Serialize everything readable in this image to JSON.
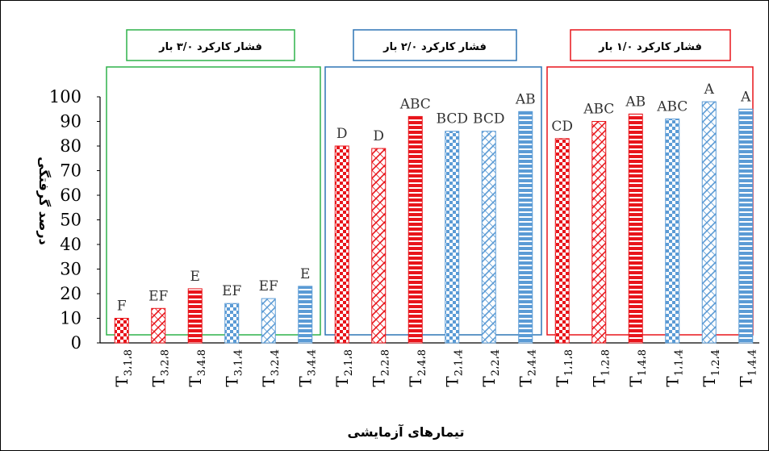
{
  "chart_data": {
    "type": "bar",
    "xlabel": "تیمارهای آزمایشی",
    "ylabel": "درصد گرفتگی",
    "ylim": [
      0,
      100
    ],
    "yticks": [
      "0",
      "10",
      "20",
      "30",
      "40",
      "50",
      "60",
      "70",
      "80",
      "90",
      "100"
    ],
    "grid": false,
    "colors": {
      "red": "#e8151b",
      "blue": "#5b9bd5",
      "green_box": "#2fb24a",
      "blue_box": "#2e75b6",
      "red_box": "#e8151b"
    },
    "groups": [
      {
        "title": "فشار کارکرد ۳/۰ بار",
        "box_color": "#2fb24a"
      },
      {
        "title": "فشار کارکرد ۲/۰ بار",
        "box_color": "#2e75b6"
      },
      {
        "title": "فشار کارکرد ۱/۰ بار",
        "box_color": "#e8151b"
      }
    ],
    "bars": [
      {
        "main": "T",
        "sub": "3،1،8",
        "value": 10,
        "label": "F",
        "color": "red",
        "pattern": "checker"
      },
      {
        "main": "T",
        "sub": "3،2،8",
        "value": 14,
        "label": "EF",
        "color": "red",
        "pattern": "diagonal"
      },
      {
        "main": "T",
        "sub": "3،4،8",
        "value": 22,
        "label": "E",
        "color": "red",
        "pattern": "stripes"
      },
      {
        "main": "T",
        "sub": "3،1،4",
        "value": 16,
        "label": "EF",
        "color": "blue",
        "pattern": "checker"
      },
      {
        "main": "T",
        "sub": "3،2،4",
        "value": 18,
        "label": "EF",
        "color": "blue",
        "pattern": "diagonal"
      },
      {
        "main": "T",
        "sub": "3،4،4",
        "value": 23,
        "label": "E",
        "color": "blue",
        "pattern": "stripes"
      },
      {
        "main": "T",
        "sub": "2،1،8",
        "value": 80,
        "label": "D",
        "color": "red",
        "pattern": "checker"
      },
      {
        "main": "T",
        "sub": "2،2،8",
        "value": 79,
        "label": "D",
        "color": "red",
        "pattern": "diagonal"
      },
      {
        "main": "T",
        "sub": "2،4،8",
        "value": 92,
        "label": "ABC",
        "color": "red",
        "pattern": "stripes"
      },
      {
        "main": "T",
        "sub": "2،1،4",
        "value": 86,
        "label": "BCD",
        "color": "blue",
        "pattern": "checker"
      },
      {
        "main": "T",
        "sub": "2،2،4",
        "value": 86,
        "label": "BCD",
        "color": "blue",
        "pattern": "diagonal"
      },
      {
        "main": "T",
        "sub": "2،4،4",
        "value": 94,
        "label": "AB",
        "color": "blue",
        "pattern": "stripes"
      },
      {
        "main": "T",
        "sub": "1،1،8",
        "value": 83,
        "label": "CD",
        "color": "red",
        "pattern": "checker"
      },
      {
        "main": "T",
        "sub": "1،2،8",
        "value": 90,
        "label": "ABC",
        "color": "red",
        "pattern": "diagonal"
      },
      {
        "main": "T",
        "sub": "1،4،8",
        "value": 93,
        "label": "AB",
        "color": "red",
        "pattern": "stripes"
      },
      {
        "main": "T",
        "sub": "1،1،4",
        "value": 91,
        "label": "ABC",
        "color": "blue",
        "pattern": "checker"
      },
      {
        "main": "T",
        "sub": "1،2،4",
        "value": 98,
        "label": "A",
        "color": "blue",
        "pattern": "diagonal"
      },
      {
        "main": "T",
        "sub": "1،4،4",
        "value": 95,
        "label": "A",
        "color": "blue",
        "pattern": "stripes"
      }
    ]
  }
}
